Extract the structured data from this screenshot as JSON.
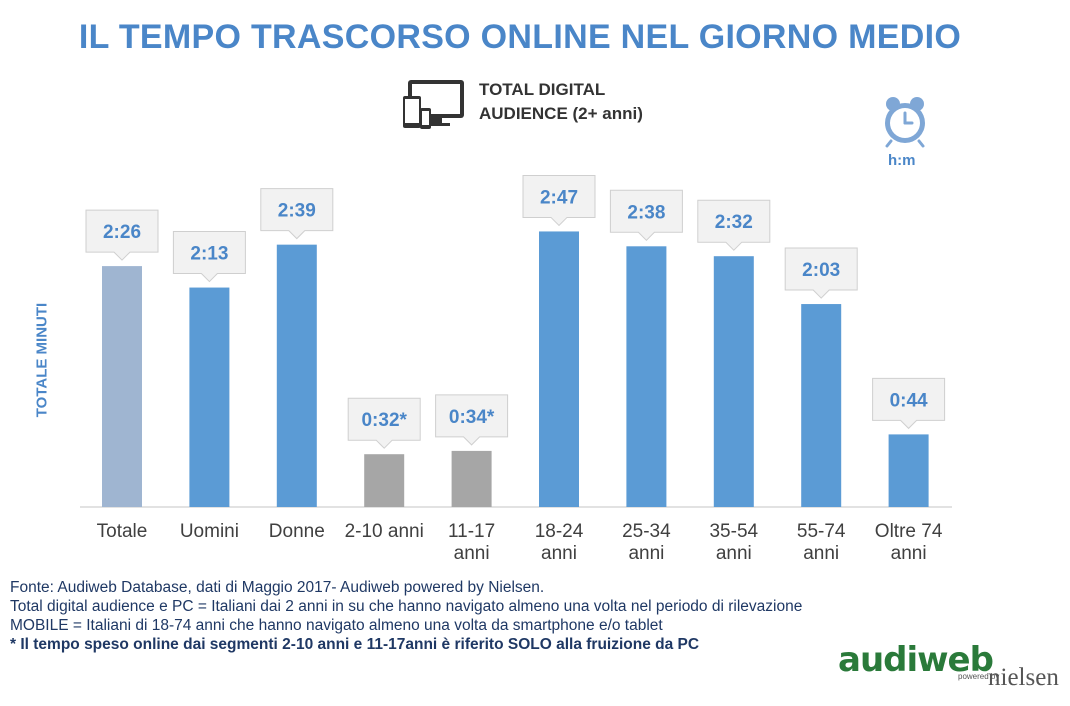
{
  "title": "IL TEMPO TRASCORSO ONLINE NEL GIORNO MEDIO",
  "audience": {
    "line1": "TOTAL DIGITAL",
    "line2": "AUDIENCE (2+ anni)"
  },
  "unit": "h:m",
  "icons": {
    "device": "devices-icon",
    "clock": "alarm-clock-icon"
  },
  "chart_data": {
    "type": "bar",
    "ylabel": "TOTALE MINUTI",
    "ylim": [
      0,
      180
    ],
    "categories": [
      [
        "Totale"
      ],
      [
        "Uomini"
      ],
      [
        "Donne"
      ],
      [
        "2-10 anni"
      ],
      [
        "11-17",
        "anni"
      ],
      [
        "18-24",
        "anni"
      ],
      [
        "25-34",
        "anni"
      ],
      [
        "35-54",
        "anni"
      ],
      [
        "55-74",
        "anni"
      ],
      [
        "Oltre 74",
        "anni"
      ]
    ],
    "values": [
      146,
      133,
      159,
      32,
      34,
      167,
      158,
      152,
      123,
      44
    ],
    "data_labels": [
      "2:26",
      "2:13",
      "2:39",
      "0:32*",
      "0:34*",
      "2:47",
      "2:38",
      "2:32",
      "2:03",
      "0:44"
    ],
    "colors": [
      "#9fb5d1",
      "#5b9bd5",
      "#5b9bd5",
      "#a6a6a6",
      "#a6a6a6",
      "#5b9bd5",
      "#5b9bd5",
      "#5b9bd5",
      "#5b9bd5",
      "#5b9bd5"
    ],
    "legend": "none",
    "grid": false
  },
  "notes": [
    "Fonte: Audiweb Database, dati di Maggio 2017- Audiweb powered by Nielsen.",
    "Total digital audience e PC = Italiani dai 2 anni in su che hanno navigato almeno una volta nel periodo di rilevazione",
    "MOBILE = Italiani di 18-74 anni che hanno navigato almeno una volta da smartphone e/o tablet"
  ],
  "note_bold": "* Il tempo speso online dai segmenti 2-10 anni e 11-17anni è riferito SOLO alla fruizione da PC",
  "logo": {
    "name": "audiweb",
    "powered": "powered by",
    "partner": "nielsen"
  },
  "colors": {
    "accent": "#4a86c8",
    "bar": "#5b9bd5",
    "bar_total": "#9fb5d1",
    "bar_pc_only": "#a6a6a6",
    "label_box": "#f2f2f2"
  }
}
